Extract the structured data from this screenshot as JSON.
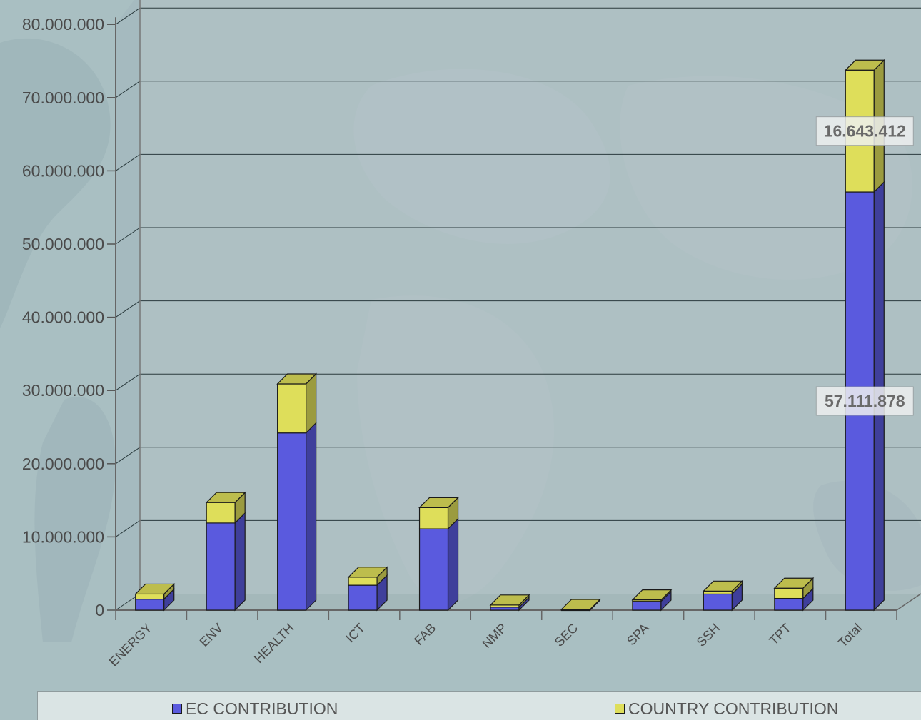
{
  "chart_data": {
    "type": "bar",
    "stacked": true,
    "title": "",
    "xlabel": "",
    "ylabel": "",
    "ylim": [
      0,
      80000000
    ],
    "yticks": [
      0,
      10000000,
      20000000,
      30000000,
      40000000,
      50000000,
      60000000,
      70000000,
      80000000
    ],
    "ytick_labels": [
      "0",
      "10.000.000",
      "20.000.000",
      "30.000.000",
      "40.000.000",
      "50.000.000",
      "60.000.000",
      "70.000.000",
      "80.000.000"
    ],
    "categories": [
      "ENERGY",
      "ENV",
      "HEALTH",
      "ICT",
      "FAB",
      "NMP",
      "SEC",
      "SPA",
      "SSH",
      "TPT",
      "Total"
    ],
    "series": [
      {
        "name": "EC CONTRIBUTION",
        "color": "#5a5ade",
        "values": [
          1500000,
          11900000,
          24200000,
          3400000,
          11100000,
          400000,
          0,
          1200000,
          2200000,
          1600000,
          57111878
        ]
      },
      {
        "name": "COUNTRY CONTRIBUTION",
        "color": "#dede5a",
        "values": [
          700000,
          2800000,
          6700000,
          1100000,
          2900000,
          300000,
          100000,
          200000,
          400000,
          1400000,
          16643412
        ]
      }
    ],
    "data_labels": [
      {
        "category": "Total",
        "series": "COUNTRY CONTRIBUTION",
        "text": "16.643.412"
      },
      {
        "category": "Total",
        "series": "EC CONTRIBUTION",
        "text": "57.111.878"
      }
    ],
    "grid": true,
    "legend": "bottom",
    "view": "3d"
  }
}
